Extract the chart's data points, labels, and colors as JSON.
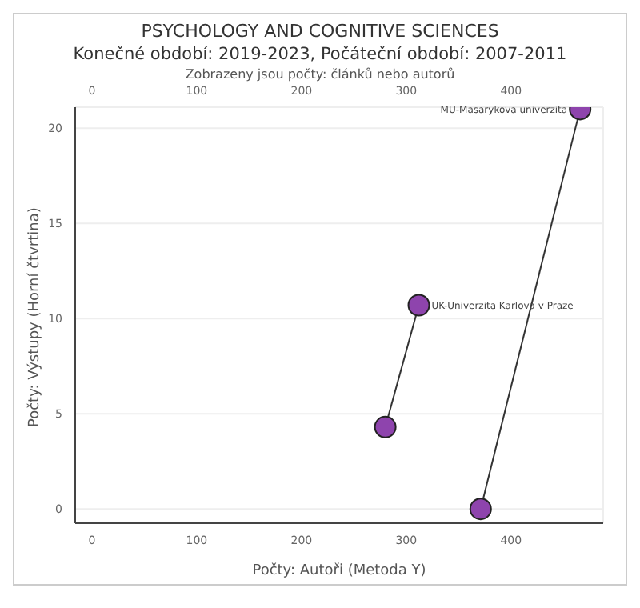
{
  "chart_data": {
    "type": "line",
    "title": "PSYCHOLOGY AND COGNITIVE SCIENCES",
    "subtitle": "Konečné období: 2019-2023, Počáteční období: 2007-2011",
    "annotations": [
      "Zobrazeny jsou počty: článků nebo autorů",
      {
        "text": "MU-Masarykova univerzita",
        "x": 466,
        "y": 21
      },
      {
        "text": "UK-Univerzita Karlova v Praze",
        "x": 312,
        "y": 10.7
      }
    ],
    "xlabel": "Počty: Autoři (Metoda Y)",
    "ylabel": "Počty: Výstupy (Horní čtvrtina)",
    "series": [
      {
        "color": "#8e44ad",
        "x": [
          280,
          312
        ],
        "values": [
          4.3,
          10.7
        ]
      },
      {
        "color": "#8e44ad",
        "x": [
          371,
          466
        ],
        "values": [
          0,
          21
        ]
      }
    ],
    "marker": "circle",
    "xlim": [
      -16,
      488
    ],
    "xticks": [
      0,
      100,
      200,
      300,
      400
    ],
    "x2lim": [
      -16,
      488
    ],
    "x2ticks": [
      0,
      100,
      200,
      300,
      400
    ],
    "ylim": [
      -0.75,
      21.1
    ],
    "yticks": [
      0,
      5,
      10,
      15,
      20
    ],
    "grid": true,
    "legend": false
  }
}
